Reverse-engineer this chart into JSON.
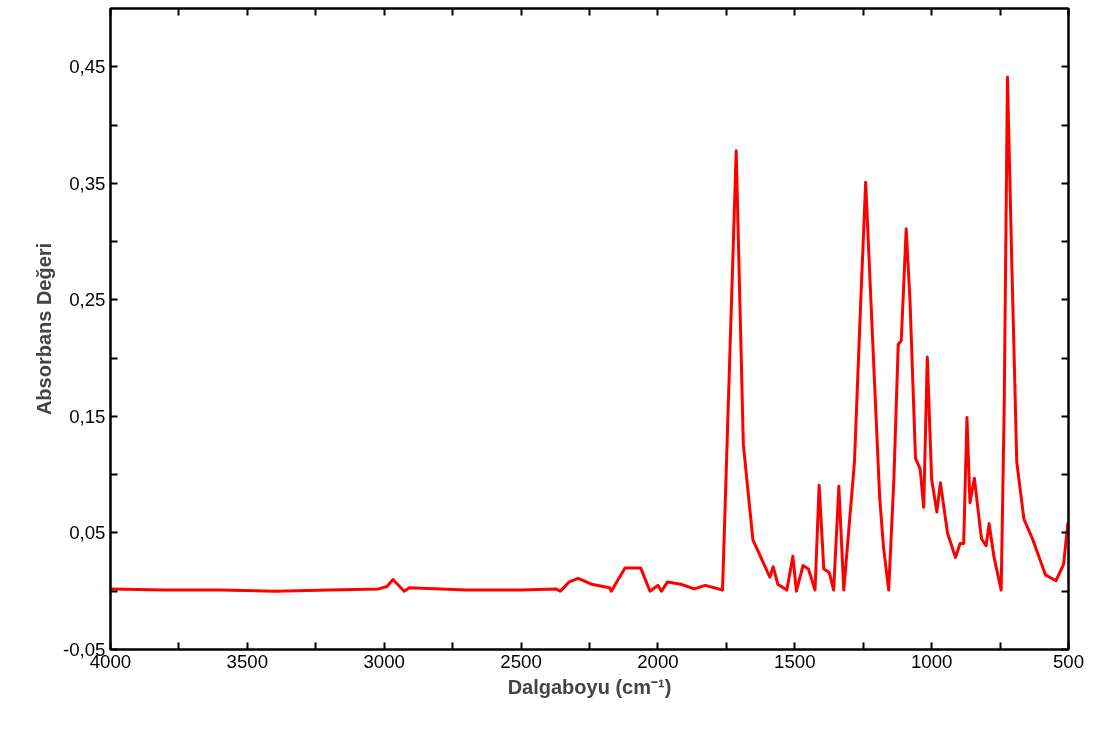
{
  "chart_data": {
    "type": "line",
    "xlabel": "Dalgaboyu (cm⁻¹)",
    "ylabel": "Absorbans Değeri",
    "grid": false,
    "marker": "none",
    "line_style": "solid",
    "xlim": [
      4000,
      500
    ],
    "ylim": [
      -0.05,
      0.5
    ],
    "xticks": [
      {
        "value": 4000,
        "label": "4000"
      },
      {
        "value": 3750,
        "label": null
      },
      {
        "value": 3500,
        "label": "3500"
      },
      {
        "value": 3250,
        "label": null
      },
      {
        "value": 3000,
        "label": "3000"
      },
      {
        "value": 2750,
        "label": null
      },
      {
        "value": 2500,
        "label": "2500"
      },
      {
        "value": 2250,
        "label": null
      },
      {
        "value": 2000,
        "label": "2000"
      },
      {
        "value": 1750,
        "label": null
      },
      {
        "value": 1500,
        "label": "1500"
      },
      {
        "value": 1250,
        "label": null
      },
      {
        "value": 1000,
        "label": "1000"
      },
      {
        "value": 750,
        "label": null
      },
      {
        "value": 500,
        "label": "500"
      }
    ],
    "yticks": [
      {
        "value": -0.05,
        "label": "-0,05"
      },
      {
        "value": 0,
        "label": null
      },
      {
        "value": 0.05,
        "label": "0,05"
      },
      {
        "value": 0.1,
        "label": null
      },
      {
        "value": 0.15,
        "label": "0,15"
      },
      {
        "value": 0.2,
        "label": null
      },
      {
        "value": 0.25,
        "label": "0,25"
      },
      {
        "value": 0.3,
        "label": null
      },
      {
        "value": 0.35,
        "label": "0,35"
      },
      {
        "value": 0.4,
        "label": null
      },
      {
        "value": 0.45,
        "label": "0,45"
      }
    ],
    "series": [
      {
        "color": "#ff0000",
        "x": [
          4000,
          3800,
          3600,
          3400,
          3200,
          3020,
          2990,
          2968,
          2927,
          2908,
          2700,
          2500,
          2373,
          2357,
          2324,
          2291,
          2243,
          2177,
          2170,
          2153,
          2120,
          2063,
          2029,
          2000,
          1987,
          1965,
          1916,
          1867,
          1827,
          1764,
          1714,
          1688,
          1653,
          1614,
          1591,
          1579,
          1562,
          1529,
          1507,
          1494,
          1470,
          1450,
          1426,
          1411,
          1394,
          1374,
          1358,
          1339,
          1321,
          1282,
          1259,
          1241,
          1216,
          1190,
          1176,
          1157,
          1138,
          1122,
          1111,
          1093,
          1079,
          1059,
          1042,
          1029,
          1016,
          1000,
          981,
          968,
          942,
          913,
          896,
          883,
          871,
          860,
          844,
          818,
          801,
          790,
          772,
          746,
          735,
          723,
          707,
          689,
          663,
          630,
          584,
          546,
          518,
          502
        ],
        "values": [
          0.002,
          0.001,
          0.001,
          0.0,
          0.001,
          0.002,
          0.004,
          0.01,
          0.0,
          0.003,
          0.001,
          0.001,
          0.002,
          0.0,
          0.008,
          0.011,
          0.006,
          0.003,
          0.0,
          0.007,
          0.02,
          0.02,
          0.0,
          0.005,
          0.0,
          0.008,
          0.006,
          0.002,
          0.005,
          0.001,
          0.378,
          0.126,
          0.044,
          0.024,
          0.012,
          0.021,
          0.006,
          0.001,
          0.03,
          0.0,
          0.022,
          0.019,
          0.001,
          0.091,
          0.019,
          0.016,
          0.001,
          0.09,
          0.001,
          0.111,
          0.249,
          0.351,
          0.218,
          0.081,
          0.038,
          0.001,
          0.096,
          0.212,
          0.215,
          0.311,
          0.249,
          0.114,
          0.105,
          0.072,
          0.201,
          0.096,
          0.068,
          0.093,
          0.05,
          0.029,
          0.041,
          0.041,
          0.149,
          0.076,
          0.097,
          0.045,
          0.039,
          0.058,
          0.029,
          0.001,
          0.157,
          0.441,
          0.28,
          0.111,
          0.062,
          0.044,
          0.014,
          0.009,
          0.023,
          0.059
        ]
      }
    ]
  }
}
